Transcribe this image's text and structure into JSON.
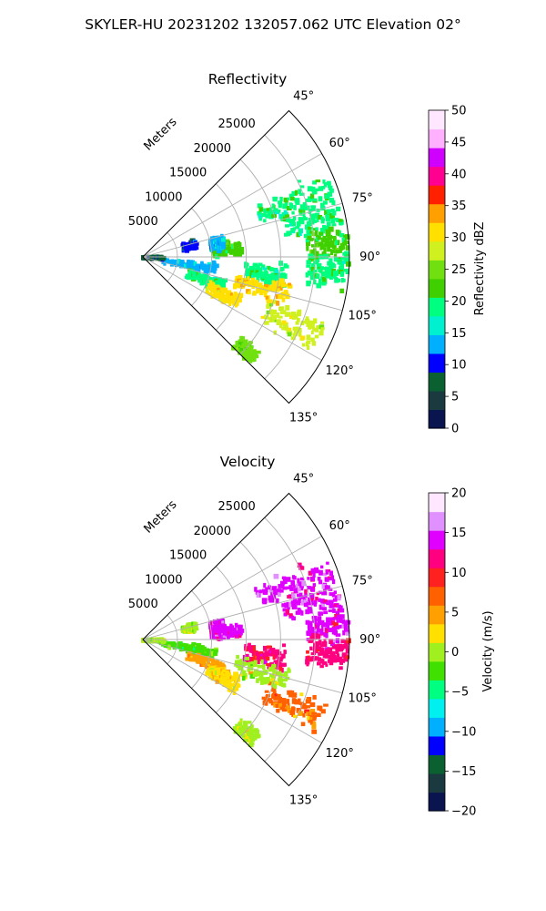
{
  "figure": {
    "suptitle": "SKYLER-HU  20231202  132057.062 UTC Elevation 02°"
  },
  "chart_data": [
    {
      "type": "heatmap",
      "projection": "polar-sector",
      "title": "Reflectivity",
      "theta_range_deg": [
        45,
        135
      ],
      "r_max_m": 30000,
      "theta_ticks": [
        "45°",
        "60°",
        "75°",
        "90°",
        "105°",
        "120°",
        "135°"
      ],
      "r_ticks": [
        "5000",
        "10000",
        "15000",
        "20000",
        "25000"
      ],
      "r_unit_label": "Meters",
      "grid": true,
      "colorbar": {
        "label": "Reflectivity dBZ",
        "range": [
          0,
          50
        ],
        "ticks": [
          "0",
          "5",
          "10",
          "15",
          "20",
          "25",
          "30",
          "35",
          "40",
          "45",
          "50"
        ],
        "colormap_stops": [
          "#0a1550",
          "#1a3a40",
          "#0a6030",
          "#0000ff",
          "#00b0ff",
          "#00f0d0",
          "#00ff80",
          "#40d000",
          "#70e010",
          "#d0f020",
          "#ffe000",
          "#ffa000",
          "#ff2000",
          "#ff0090",
          "#d000ff",
          "#ffb0ff",
          "#ffe8ff"
        ]
      },
      "echoes": [
        {
          "theta": 70,
          "r0": 18000,
          "r1": 29500,
          "value": 20
        },
        {
          "theta": 78,
          "r0": 21000,
          "r1": 29500,
          "value": 20
        },
        {
          "theta": 86,
          "r0": 24000,
          "r1": 30000,
          "value": 22
        },
        {
          "theta": 94,
          "r0": 24000,
          "r1": 30000,
          "value": 20
        },
        {
          "theta": 98,
          "r0": 15000,
          "r1": 21000,
          "value": 19
        },
        {
          "theta": 85,
          "r0": 10000,
          "r1": 14500,
          "value": 22
        },
        {
          "theta": 80,
          "r0": 10000,
          "r1": 12000,
          "value": 14
        },
        {
          "theta": 76,
          "r0": 6000,
          "r1": 8000,
          "value": 10
        },
        {
          "theta": 100,
          "r0": 3000,
          "r1": 11000,
          "value": 14
        },
        {
          "theta": 110,
          "r0": 7000,
          "r1": 12500,
          "value": 20
        },
        {
          "theta": 115,
          "r0": 10500,
          "r1": 15500,
          "value": 30
        },
        {
          "theta": 114,
          "r0": 19500,
          "r1": 28500,
          "value": 28
        },
        {
          "theta": 133,
          "r0": 18500,
          "r1": 22000,
          "value": 24
        },
        {
          "theta": 105,
          "r0": 14000,
          "r1": 22000,
          "value": 32
        },
        {
          "theta": 92,
          "r0": 0,
          "r1": 3000,
          "value": 8
        }
      ]
    },
    {
      "type": "heatmap",
      "projection": "polar-sector",
      "title": "Velocity",
      "theta_range_deg": [
        45,
        135
      ],
      "r_max_m": 30000,
      "theta_ticks": [
        "45°",
        "60°",
        "75°",
        "90°",
        "105°",
        "120°",
        "135°"
      ],
      "r_ticks": [
        "5000",
        "10000",
        "15000",
        "20000",
        "25000"
      ],
      "r_unit_label": "Meters",
      "grid": true,
      "colorbar": {
        "label": "Velocity (m/s)",
        "range": [
          -20,
          20
        ],
        "ticks": [
          "−20",
          "−15",
          "−10",
          "−5",
          "0",
          "5",
          "10",
          "15",
          "20"
        ],
        "colormap_stops": [
          "#0a1550",
          "#1a3a40",
          "#0a6030",
          "#0000ff",
          "#00b0ff",
          "#00f0f0",
          "#00ff80",
          "#40e000",
          "#a0f020",
          "#ffe000",
          "#ffa000",
          "#ff6000",
          "#ff2020",
          "#ff0080",
          "#e000ff",
          "#e090ff",
          "#ffe8ff"
        ]
      },
      "echoes": [
        {
          "theta": 70,
          "r0": 18000,
          "r1": 29500,
          "value": 14
        },
        {
          "theta": 78,
          "r0": 21000,
          "r1": 29500,
          "value": 14
        },
        {
          "theta": 86,
          "r0": 24000,
          "r1": 30000,
          "value": 13
        },
        {
          "theta": 94,
          "r0": 24000,
          "r1": 30000,
          "value": 11
        },
        {
          "theta": 98,
          "r0": 15000,
          "r1": 21000,
          "value": 11
        },
        {
          "theta": 85,
          "r0": 10000,
          "r1": 14500,
          "value": 14
        },
        {
          "theta": 80,
          "r0": 10000,
          "r1": 12000,
          "value": 14
        },
        {
          "theta": 76,
          "r0": 6000,
          "r1": 8000,
          "value": 0
        },
        {
          "theta": 100,
          "r0": 3000,
          "r1": 11000,
          "value": -3
        },
        {
          "theta": 110,
          "r0": 7000,
          "r1": 12500,
          "value": 5
        },
        {
          "theta": 115,
          "r0": 10500,
          "r1": 15500,
          "value": 3
        },
        {
          "theta": 114,
          "r0": 19500,
          "r1": 28500,
          "value": 6
        },
        {
          "theta": 133,
          "r0": 18500,
          "r1": 22000,
          "value": 1
        },
        {
          "theta": 105,
          "r0": 14000,
          "r1": 22000,
          "value": 1
        },
        {
          "theta": 92,
          "r0": 0,
          "r1": 3000,
          "value": 0
        }
      ]
    }
  ]
}
